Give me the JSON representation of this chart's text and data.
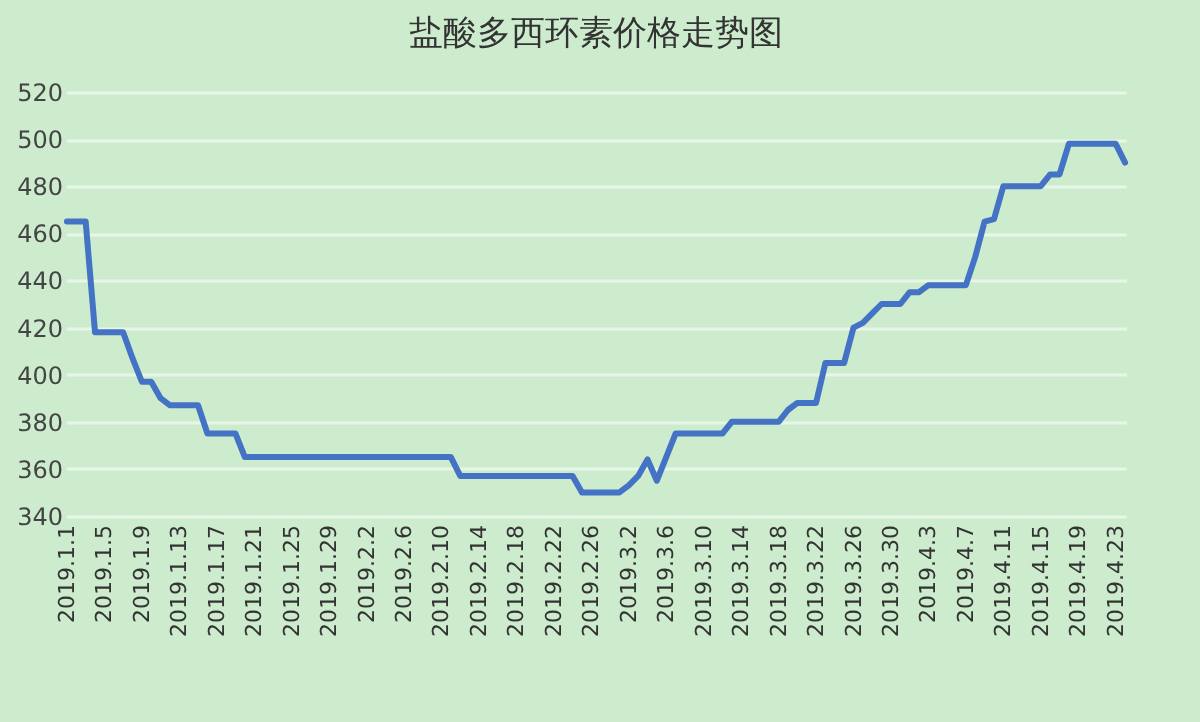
{
  "chart_data": {
    "type": "line",
    "title": "盐酸多西环素价格走势图",
    "categories": [
      "2019.1.1",
      null,
      null,
      null,
      "2019.1.5",
      null,
      null,
      null,
      "2019.1.9",
      null,
      null,
      null,
      "2019.1.13",
      null,
      null,
      null,
      "2019.1.17",
      null,
      null,
      null,
      "2019.1.21",
      null,
      null,
      null,
      "2019.1.25",
      null,
      null,
      null,
      "2019.1.29",
      null,
      null,
      null,
      "2019.2.2",
      null,
      null,
      null,
      "2019.2.6",
      null,
      null,
      null,
      "2019.2.10",
      null,
      null,
      null,
      "2019.2.14",
      null,
      null,
      null,
      "2019.2.18",
      null,
      null,
      null,
      "2019.2.22",
      null,
      null,
      null,
      "2019.2.26",
      null,
      null,
      null,
      "2019.3.2",
      null,
      null,
      null,
      "2019.3.6",
      null,
      null,
      null,
      "2019.3.10",
      null,
      null,
      null,
      "2019.3.14",
      null,
      null,
      null,
      "2019.3.18",
      null,
      null,
      null,
      "2019.3.22",
      null,
      null,
      null,
      "2019.3.26",
      null,
      null,
      null,
      "2019.3.30",
      null,
      null,
      null,
      "2019.4.3",
      null,
      null,
      null,
      "2019.4.7",
      null,
      null,
      null,
      "2019.4.11",
      null,
      null,
      null,
      "2019.4.15",
      null,
      null,
      null,
      "2019.4.19",
      null,
      null,
      null,
      "2019.4.23",
      null
    ],
    "series": [
      {
        "color": "#4472c4",
        "values": [
          465,
          465,
          465,
          418,
          418,
          418,
          418,
          407,
          397,
          397,
          390,
          387,
          387,
          387,
          387,
          375,
          375,
          375,
          375,
          365,
          365,
          365,
          365,
          365,
          365,
          365,
          365,
          365,
          365,
          365,
          365,
          365,
          365,
          365,
          365,
          365,
          365,
          365,
          365,
          365,
          365,
          365,
          357,
          357,
          357,
          357,
          357,
          357,
          357,
          357,
          357,
          357,
          357,
          357,
          357,
          350,
          350,
          350,
          350,
          350,
          353,
          357,
          364,
          355,
          365,
          375,
          375,
          375,
          375,
          375,
          375,
          380,
          380,
          380,
          380,
          380,
          380,
          385,
          388,
          388,
          388,
          405,
          405,
          405,
          420,
          422,
          426,
          430,
          430,
          430,
          435,
          435,
          438,
          438,
          438,
          438,
          438,
          450,
          465,
          466,
          480,
          480,
          480,
          480,
          480,
          485,
          485,
          498,
          498,
          498,
          498,
          498,
          498,
          490
        ]
      }
    ],
    "ylim": [
      340,
      520
    ],
    "yticks": [
      340,
      360,
      380,
      400,
      420,
      440,
      460,
      480,
      500,
      520
    ],
    "grid": "y",
    "line_style": "solid",
    "marker": "none"
  }
}
